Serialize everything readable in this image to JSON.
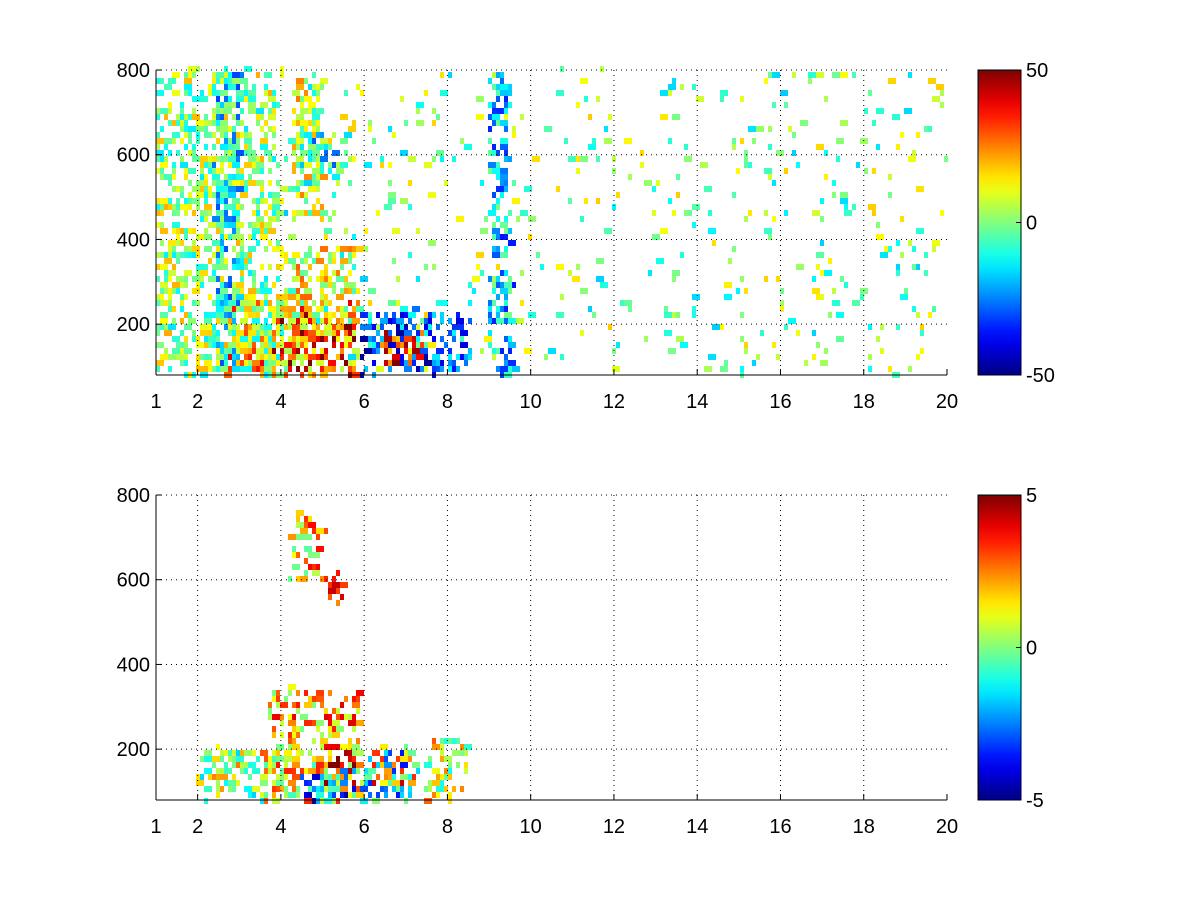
{
  "chart_data": [
    {
      "type": "heatmap",
      "title": "",
      "xlabel": "",
      "ylabel": "",
      "xlim": [
        1,
        20
      ],
      "ylim": [
        80,
        800
      ],
      "x_ticks": [
        1,
        2,
        4,
        6,
        8,
        10,
        12,
        14,
        16,
        18,
        20
      ],
      "y_ticks": [
        200,
        400,
        600,
        800
      ],
      "grid": true,
      "colormap": "jet",
      "colorbar": {
        "min": -50,
        "max": 50,
        "ticks": [
          50,
          0,
          -50
        ]
      },
      "regions": [
        {
          "x": [
            3.2,
            5.8
          ],
          "y": [
            80,
            220
          ],
          "value": 40
        },
        {
          "x": [
            2.6,
            5.8
          ],
          "y": [
            80,
            250
          ],
          "value": 22
        },
        {
          "x": [
            4.0,
            5.9
          ],
          "y": [
            220,
            380
          ],
          "value": 12
        },
        {
          "x": [
            5.9,
            8.6
          ],
          "y": [
            80,
            230
          ],
          "value": -30
        },
        {
          "x": [
            6.3,
            7.4
          ],
          "y": [
            100,
            180
          ],
          "value": 35
        },
        {
          "x": [
            4.2,
            5.0
          ],
          "y": [
            450,
            780
          ],
          "value": 8
        },
        {
          "x": [
            4.4,
            5.6
          ],
          "y": [
            560,
            660
          ],
          "value": -12
        },
        {
          "x": [
            1.0,
            4.0
          ],
          "y": [
            80,
            800
          ],
          "value": 3
        },
        {
          "x": [
            2.4,
            3.0
          ],
          "y": [
            80,
            800
          ],
          "value": -14
        },
        {
          "x": [
            9.0,
            9.5
          ],
          "y": [
            80,
            800
          ],
          "value": -18
        },
        {
          "x": [
            4.0,
            20.0
          ],
          "y": [
            80,
            800
          ],
          "value": 0
        }
      ]
    },
    {
      "type": "heatmap",
      "title": "",
      "xlabel": "",
      "ylabel": "",
      "xlim": [
        1,
        20
      ],
      "ylim": [
        80,
        800
      ],
      "x_ticks": [
        1,
        2,
        4,
        6,
        8,
        10,
        12,
        14,
        16,
        18,
        20
      ],
      "y_ticks": [
        200,
        400,
        600,
        800
      ],
      "grid": true,
      "colormap": "jet",
      "colorbar": {
        "min": -5,
        "max": 5,
        "ticks": [
          5,
          0,
          -5
        ]
      },
      "regions": [
        {
          "x": [
            2.0,
            4.0
          ],
          "y": [
            80,
            200
          ],
          "value": 0.5
        },
        {
          "x": [
            3.5,
            6.0
          ],
          "y": [
            80,
            200
          ],
          "value": 1.5
        },
        {
          "x": [
            4.8,
            5.8
          ],
          "y": [
            120,
            220
          ],
          "value": 3.5
        },
        {
          "x": [
            4.5,
            5.8
          ],
          "y": [
            80,
            150
          ],
          "value": -2.5
        },
        {
          "x": [
            5.9,
            7.3
          ],
          "y": [
            80,
            200
          ],
          "value": -1.5
        },
        {
          "x": [
            6.2,
            7.2
          ],
          "y": [
            120,
            200
          ],
          "value": 3
        },
        {
          "x": [
            3.7,
            5.9
          ],
          "y": [
            200,
            340
          ],
          "value": 2
        },
        {
          "x": [
            4.2,
            5.0
          ],
          "y": [
            600,
            760
          ],
          "value": 1.8
        },
        {
          "x": [
            5.0,
            5.5
          ],
          "y": [
            540,
            620
          ],
          "value": 2.8
        },
        {
          "x": [
            7.5,
            8.5
          ],
          "y": [
            80,
            220
          ],
          "value": 0.8
        }
      ]
    }
  ]
}
